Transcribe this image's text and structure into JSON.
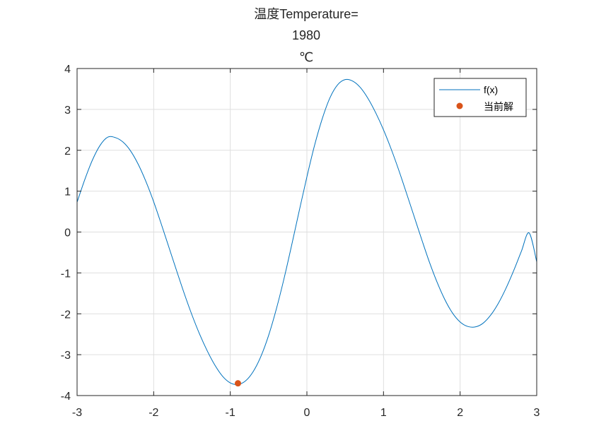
{
  "chart_data": {
    "type": "line",
    "title_lines": [
      "温度Temperature=",
      "1980",
      "℃"
    ],
    "xlabel": "",
    "ylabel": "",
    "xlim": [
      -3,
      3
    ],
    "ylim": [
      -4,
      4
    ],
    "x_ticks": [
      -3,
      -2,
      -1,
      0,
      1,
      2,
      3
    ],
    "y_ticks": [
      -4,
      -3,
      -2,
      -1,
      0,
      1,
      2,
      3,
      4
    ],
    "x_tick_labels": [
      "-3",
      "-2",
      "-1",
      "0",
      "1",
      "2",
      "3"
    ],
    "y_tick_labels": [
      "-4",
      "-3",
      "-2",
      "-1",
      "0",
      "1",
      "2",
      "3",
      "4"
    ],
    "grid": true,
    "legend_position": "top-right",
    "series": [
      {
        "name": "f(x)",
        "kind": "line",
        "color": "#0072BD",
        "x": [
          -3.0,
          -2.9,
          -2.8,
          -2.7,
          -2.6,
          -2.5,
          -2.4,
          -2.3,
          -2.2,
          -2.1,
          -2.0,
          -1.9,
          -1.8,
          -1.7,
          -1.6,
          -1.5,
          -1.4,
          -1.3,
          -1.2,
          -1.1,
          -1.0,
          -0.9,
          -0.8,
          -0.7,
          -0.6,
          -0.5,
          -0.4,
          -0.3,
          -0.2,
          -0.1,
          0.0,
          0.1,
          0.2,
          0.3,
          0.4,
          0.5,
          0.6,
          0.7,
          0.8,
          0.9,
          1.0,
          1.1,
          1.2,
          1.3,
          1.4,
          1.5,
          1.6,
          1.7,
          1.8,
          1.9,
          2.0,
          2.1,
          2.2,
          2.3,
          2.4,
          2.5,
          2.6,
          2.7,
          2.8,
          2.9,
          3.0
        ],
        "y": [
          0.73,
          1.28,
          1.76,
          2.12,
          2.32,
          2.31,
          2.2,
          1.98,
          1.65,
          1.23,
          0.74,
          0.19,
          -0.38,
          -0.95,
          -1.51,
          -2.03,
          -2.5,
          -2.91,
          -3.26,
          -3.53,
          -3.69,
          -3.73,
          -3.64,
          -3.41,
          -3.04,
          -2.53,
          -1.89,
          -1.15,
          -0.33,
          0.52,
          1.35,
          2.12,
          2.77,
          3.28,
          3.6,
          3.73,
          3.69,
          3.53,
          3.26,
          2.91,
          2.5,
          2.03,
          1.51,
          0.95,
          0.38,
          -0.19,
          -0.74,
          -1.23,
          -1.65,
          -1.98,
          -2.2,
          -2.31,
          -2.32,
          -2.23,
          -2.03,
          -1.74,
          -1.37,
          -0.94,
          -0.47,
          -0.02,
          -0.73
        ]
      },
      {
        "name": "当前解",
        "kind": "scatter",
        "color": "#D95319",
        "x": [
          -0.9
        ],
        "y": [
          -3.7
        ]
      }
    ]
  }
}
